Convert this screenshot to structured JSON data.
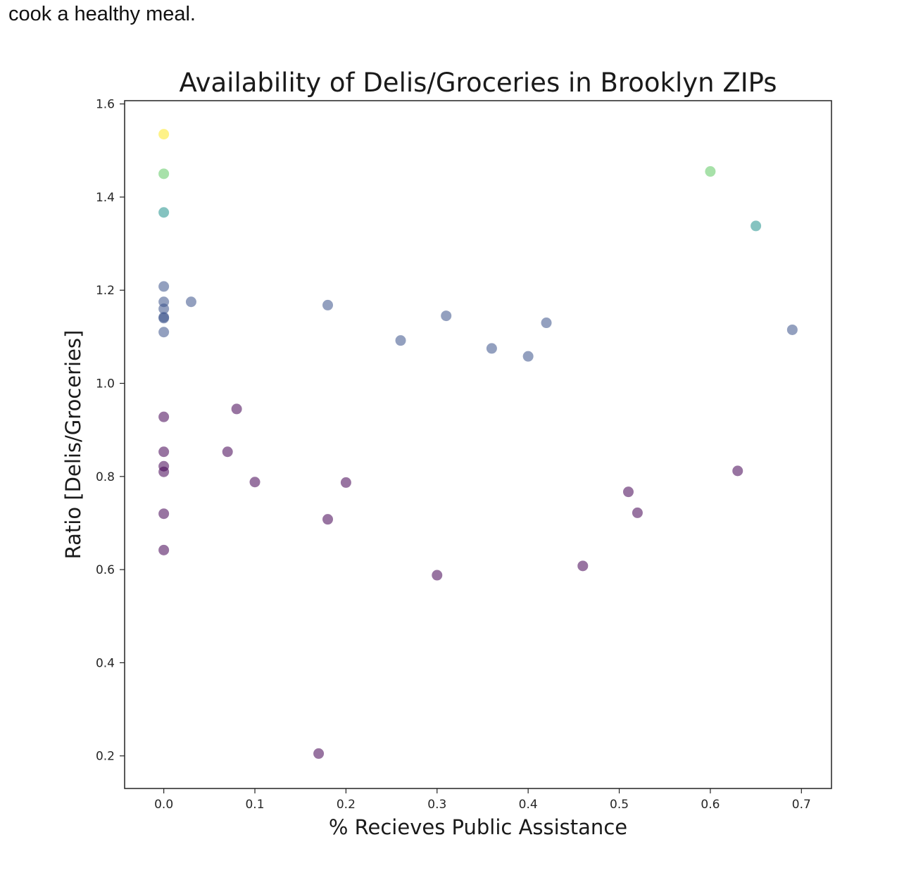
{
  "intro": {
    "text": "cook a healthy meal."
  },
  "chart_data": {
    "type": "scatter",
    "title": "Availability of Delis/Groceries in Brooklyn ZIPs",
    "xlabel": "% Recieves Public Assistance",
    "ylabel": "Ratio [Delis/Groceries]",
    "xlim": [
      -0.043,
      0.733
    ],
    "ylim": [
      0.13,
      1.607
    ],
    "xticks": [
      0.0,
      0.1,
      0.2,
      0.3,
      0.4,
      0.5,
      0.6,
      0.7
    ],
    "xtick_labels": [
      "0.0",
      "0.1",
      "0.2",
      "0.3",
      "0.4",
      "0.5",
      "0.6",
      "0.7"
    ],
    "yticks": [
      0.2,
      0.4,
      0.6,
      0.8,
      1.0,
      1.2,
      1.4,
      1.6
    ],
    "ytick_labels": [
      "0.2",
      "0.4",
      "0.6",
      "0.8",
      "1.0",
      "1.2",
      "1.4",
      "1.6"
    ],
    "grid": false,
    "colormap": "viridis",
    "color_scale": {
      "low": "#440154",
      "mid_low": "#3b528b",
      "mid": "#21918c",
      "mid_high": "#5ec962",
      "high": "#fde725"
    },
    "point_alpha": 0.55,
    "points": [
      {
        "x": 0.0,
        "y": 1.535,
        "color": "#fde725"
      },
      {
        "x": 0.0,
        "y": 1.45,
        "color": "#5ec962"
      },
      {
        "x": 0.0,
        "y": 1.367,
        "color": "#21918c"
      },
      {
        "x": 0.0,
        "y": 1.208,
        "color": "#3b528b"
      },
      {
        "x": 0.0,
        "y": 1.175,
        "color": "#3b528b"
      },
      {
        "x": 0.0,
        "y": 1.16,
        "color": "#3b528b"
      },
      {
        "x": 0.0,
        "y": 1.142,
        "color": "#3b528b"
      },
      {
        "x": 0.0,
        "y": 1.14,
        "color": "#3b528b"
      },
      {
        "x": 0.0,
        "y": 1.11,
        "color": "#3b528b"
      },
      {
        "x": 0.03,
        "y": 1.175,
        "color": "#3b528b"
      },
      {
        "x": 0.18,
        "y": 1.168,
        "color": "#3b528b"
      },
      {
        "x": 0.26,
        "y": 1.092,
        "color": "#3b528b"
      },
      {
        "x": 0.31,
        "y": 1.145,
        "color": "#3b528b"
      },
      {
        "x": 0.36,
        "y": 1.075,
        "color": "#3b528b"
      },
      {
        "x": 0.4,
        "y": 1.058,
        "color": "#3b528b"
      },
      {
        "x": 0.42,
        "y": 1.13,
        "color": "#3b528b"
      },
      {
        "x": 0.6,
        "y": 1.455,
        "color": "#5ec962"
      },
      {
        "x": 0.65,
        "y": 1.338,
        "color": "#21918c"
      },
      {
        "x": 0.69,
        "y": 1.115,
        "color": "#3b528b"
      },
      {
        "x": 0.0,
        "y": 0.928,
        "color": "#440154"
      },
      {
        "x": 0.0,
        "y": 0.853,
        "color": "#440154"
      },
      {
        "x": 0.0,
        "y": 0.822,
        "color": "#440154"
      },
      {
        "x": 0.0,
        "y": 0.81,
        "color": "#440154"
      },
      {
        "x": 0.0,
        "y": 0.72,
        "color": "#440154"
      },
      {
        "x": 0.0,
        "y": 0.642,
        "color": "#440154"
      },
      {
        "x": 0.07,
        "y": 0.853,
        "color": "#440154"
      },
      {
        "x": 0.08,
        "y": 0.945,
        "color": "#440154"
      },
      {
        "x": 0.1,
        "y": 0.788,
        "color": "#440154"
      },
      {
        "x": 0.17,
        "y": 0.205,
        "color": "#440154"
      },
      {
        "x": 0.18,
        "y": 0.708,
        "color": "#440154"
      },
      {
        "x": 0.2,
        "y": 0.787,
        "color": "#440154"
      },
      {
        "x": 0.3,
        "y": 0.588,
        "color": "#440154"
      },
      {
        "x": 0.46,
        "y": 0.608,
        "color": "#440154"
      },
      {
        "x": 0.51,
        "y": 0.767,
        "color": "#440154"
      },
      {
        "x": 0.52,
        "y": 0.722,
        "color": "#440154"
      },
      {
        "x": 0.63,
        "y": 0.812,
        "color": "#440154"
      }
    ]
  }
}
